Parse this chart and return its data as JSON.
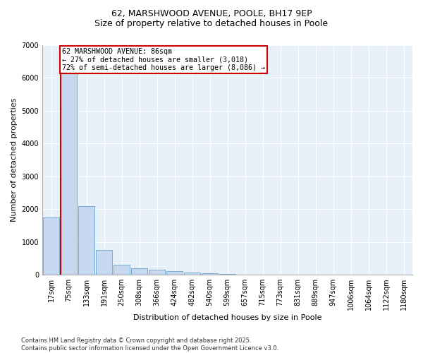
{
  "title_line1": "62, MARSHWOOD AVENUE, POOLE, BH17 9EP",
  "title_line2": "Size of property relative to detached houses in Poole",
  "xlabel": "Distribution of detached houses by size in Poole",
  "ylabel": "Number of detached properties",
  "bar_color": "#c5d8ef",
  "bar_edge_color": "#7aadd4",
  "background_color": "#e8f0fa",
  "annotation_box_color": "#cc0000",
  "property_line_color": "#cc0000",
  "annotation_text": "62 MARSHWOOD AVENUE: 86sqm\n← 27% of detached houses are smaller (3,018)\n72% of semi-detached houses are larger (8,086) →",
  "footer_line1": "Contains HM Land Registry data © Crown copyright and database right 2025.",
  "footer_line2": "Contains public sector information licensed under the Open Government Licence v3.0.",
  "categories": [
    "17sqm",
    "75sqm",
    "133sqm",
    "191sqm",
    "250sqm",
    "308sqm",
    "366sqm",
    "424sqm",
    "482sqm",
    "540sqm",
    "599sqm",
    "657sqm",
    "715sqm",
    "773sqm",
    "831sqm",
    "889sqm",
    "947sqm",
    "1006sqm",
    "1064sqm",
    "1122sqm",
    "1180sqm"
  ],
  "bar_values": [
    1750,
    6200,
    2100,
    750,
    300,
    185,
    145,
    100,
    65,
    40,
    20,
    8,
    4,
    2,
    0,
    0,
    0,
    0,
    0,
    0,
    0
  ],
  "red_line_x": 0.5,
  "ylim": [
    0,
    7000
  ],
  "yticks": [
    0,
    1000,
    2000,
    3000,
    4000,
    5000,
    6000,
    7000
  ],
  "title1_fontsize": 9,
  "title2_fontsize": 9,
  "ylabel_fontsize": 8,
  "xlabel_fontsize": 8,
  "tick_fontsize": 7,
  "footer_fontsize": 6
}
